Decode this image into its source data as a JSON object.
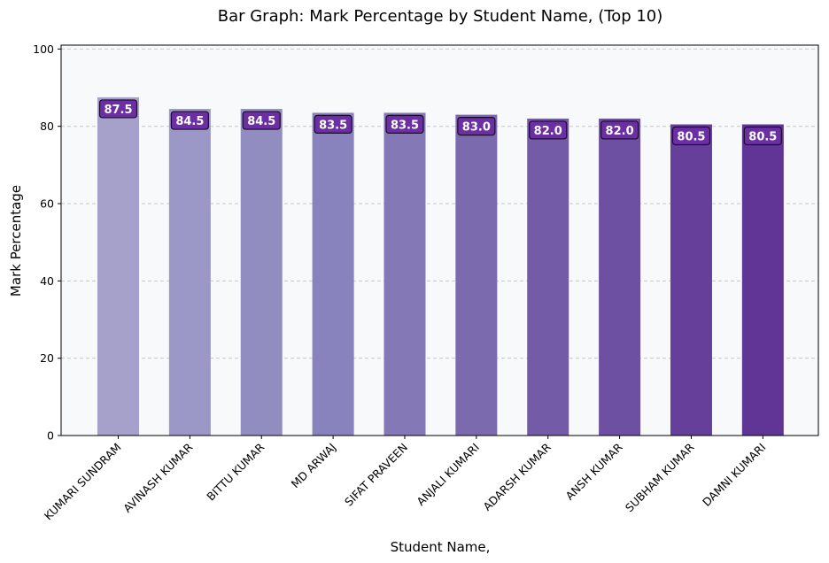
{
  "chart_data": {
    "type": "bar",
    "title": "Bar Graph: Mark Percentage by Student Name, (Top 10)",
    "xlabel": "Student Name,",
    "ylabel": "Mark Percentage",
    "categories": [
      "KUMARI SUNDRAM",
      "AVINASH KUMAR",
      "BITTU KUMAR",
      "MD ARWAJ",
      "SIFAT PRAVEEN",
      "ANJALI KUMARI",
      "ADARSH KUMAR",
      "ANSH KUMAR",
      "SUBHAM KUMAR",
      "DAMNI KUMARI"
    ],
    "values": [
      87.5,
      84.5,
      84.5,
      83.5,
      83.5,
      83.0,
      82.0,
      82.0,
      80.5,
      80.5
    ],
    "value_labels": [
      "87.5",
      "84.5",
      "84.5",
      "83.5",
      "83.5",
      "83.0",
      "82.0",
      "82.0",
      "80.5",
      "80.5"
    ],
    "ylim": [
      0,
      101
    ],
    "yticks": [
      0,
      20,
      40,
      60,
      80,
      100
    ],
    "ytick_labels": [
      "0",
      "20",
      "40",
      "60",
      "80",
      "100"
    ],
    "grid": "y-dashed",
    "colors": {
      "bars": [
        "#a6a1ca",
        "#9b97c6",
        "#918dc1",
        "#8983bd",
        "#8478b6",
        "#7b6aae",
        "#745ba7",
        "#6d50a1",
        "#663f9a",
        "#603596"
      ],
      "plot_background": "#f8f9fb",
      "label_box": "#6b2fa3",
      "grid": "#c8c8c8"
    }
  }
}
